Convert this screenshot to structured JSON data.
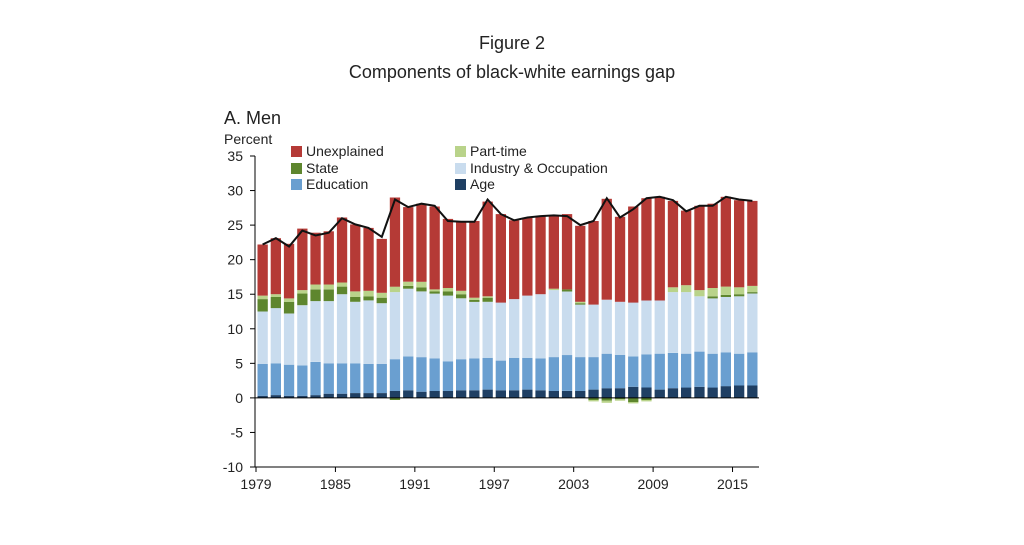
{
  "figure_title": "Figure 2",
  "figure_subtitle": "Components of black-white earnings gap",
  "chart_data": {
    "type": "bar",
    "stacked": true,
    "title": "Components of black-white earnings gap",
    "panel_title": "A. Men",
    "ylabel": "Percent",
    "xlabel": "",
    "ylim": [
      -10,
      35
    ],
    "yticks": [
      -10,
      -5,
      0,
      5,
      10,
      15,
      20,
      25,
      30,
      35
    ],
    "xtick_labels": [
      "1979",
      "1985",
      "1991",
      "1997",
      "2003",
      "2009",
      "2015"
    ],
    "grid": false,
    "legend_position": "top",
    "categories": [
      "1979",
      "1980",
      "1981",
      "1982",
      "1983",
      "1984",
      "1985",
      "1986",
      "1987",
      "1988",
      "1989",
      "1990",
      "1991",
      "1992",
      "1993",
      "1994",
      "1995",
      "1996",
      "1997",
      "1998",
      "1999",
      "2000",
      "2001",
      "2002",
      "2003",
      "2004",
      "2005",
      "2006",
      "2007",
      "2008",
      "2009",
      "2010",
      "2011",
      "2012",
      "2013",
      "2014",
      "2015",
      "2016"
    ],
    "series": [
      {
        "name": "Age",
        "color": "#1f3f63",
        "values": [
          0.3,
          0.4,
          0.3,
          0.3,
          0.4,
          0.6,
          0.6,
          0.7,
          0.7,
          0.7,
          1.0,
          1.1,
          0.9,
          1.0,
          1.0,
          1.1,
          1.1,
          1.2,
          1.1,
          1.1,
          1.2,
          1.1,
          1.0,
          1.0,
          1.0,
          1.2,
          1.4,
          1.4,
          1.6,
          1.5,
          1.2,
          1.4,
          1.5,
          1.6,
          1.5,
          1.7,
          1.8,
          1.8
        ]
      },
      {
        "name": "Education",
        "color": "#6a9fd0",
        "values": [
          4.6,
          4.6,
          4.5,
          4.4,
          4.8,
          4.4,
          4.4,
          4.3,
          4.2,
          4.2,
          4.6,
          4.9,
          5.0,
          4.7,
          4.3,
          4.5,
          4.6,
          4.6,
          4.3,
          4.7,
          4.6,
          4.6,
          4.9,
          5.2,
          4.9,
          4.7,
          5.0,
          4.8,
          4.4,
          4.8,
          5.2,
          5.1,
          4.9,
          5.1,
          4.9,
          4.9,
          4.6,
          4.8
        ]
      },
      {
        "name": "Industry & Occupation",
        "color": "#c9dcee",
        "values": [
          7.6,
          8.0,
          7.4,
          8.7,
          8.8,
          9.0,
          10.0,
          8.9,
          9.2,
          8.8,
          9.7,
          9.8,
          9.5,
          9.4,
          9.5,
          8.8,
          8.2,
          8.1,
          8.4,
          8.5,
          9.0,
          9.3,
          9.7,
          9.2,
          7.6,
          7.6,
          7.8,
          7.7,
          7.8,
          7.8,
          7.7,
          8.8,
          8.9,
          8.0,
          8.0,
          8.0,
          8.3,
          8.5
        ]
      },
      {
        "name": "State",
        "color": "#5e862e",
        "values": [
          1.8,
          1.6,
          1.7,
          1.7,
          1.7,
          1.7,
          1.1,
          0.7,
          0.6,
          0.8,
          -0.3,
          0.4,
          0.6,
          0.3,
          0.6,
          0.6,
          0.3,
          0.6,
          0.0,
          0.0,
          0.0,
          0.0,
          0.0,
          0.3,
          0.2,
          -0.3,
          -0.4,
          -0.2,
          -0.6,
          -0.3,
          0.0,
          0.0,
          0.0,
          0.0,
          0.3,
          0.3,
          0.3,
          0.2
        ]
      },
      {
        "name": "Part-time",
        "color": "#b9d38a",
        "values": [
          0.5,
          0.4,
          0.5,
          0.5,
          0.7,
          0.7,
          0.6,
          0.8,
          0.8,
          0.7,
          0.8,
          0.6,
          0.8,
          0.3,
          0.5,
          0.5,
          0.3,
          0.2,
          0.0,
          0.0,
          0.0,
          0.0,
          0.2,
          0.0,
          0.2,
          -0.2,
          -0.3,
          -0.2,
          -0.2,
          -0.2,
          0.0,
          0.7,
          1.0,
          0.9,
          1.2,
          1.2,
          1.0,
          0.9
        ]
      },
      {
        "name": "Unexplained",
        "color": "#b53a36",
        "values": [
          7.4,
          8.1,
          7.9,
          8.9,
          7.5,
          7.7,
          9.4,
          9.7,
          9.1,
          7.8,
          12.9,
          10.8,
          11.3,
          12.0,
          10.0,
          10.0,
          11.1,
          13.7,
          12.8,
          11.4,
          11.3,
          11.3,
          10.6,
          10.9,
          11.0,
          12.1,
          14.6,
          12.3,
          13.9,
          14.8,
          15.0,
          12.5,
          10.8,
          12.2,
          12.2,
          13.0,
          12.6,
          12.3
        ]
      },
      {
        "name": "Total",
        "type": "line",
        "color": "#111111",
        "values": [
          22.2,
          23.1,
          21.9,
          24.2,
          23.5,
          23.9,
          26.0,
          25.1,
          24.6,
          23.3,
          28.7,
          27.6,
          28.1,
          27.8,
          25.6,
          25.5,
          25.5,
          28.7,
          26.6,
          25.7,
          26.1,
          26.3,
          26.4,
          26.3,
          25.0,
          25.6,
          28.9,
          26.1,
          27.3,
          28.9,
          29.1,
          28.6,
          27.0,
          27.8,
          27.8,
          29.1,
          28.7,
          28.5
        ]
      }
    ]
  },
  "legend": [
    {
      "name": "Unexplained",
      "color": "#b53a36"
    },
    {
      "name": "Part-time",
      "color": "#b9d38a"
    },
    {
      "name": "State",
      "color": "#5e862e"
    },
    {
      "name": "Industry & Occupation",
      "color": "#c9dcee"
    },
    {
      "name": "Education",
      "color": "#6a9fd0"
    },
    {
      "name": "Age",
      "color": "#1f3f63"
    }
  ]
}
